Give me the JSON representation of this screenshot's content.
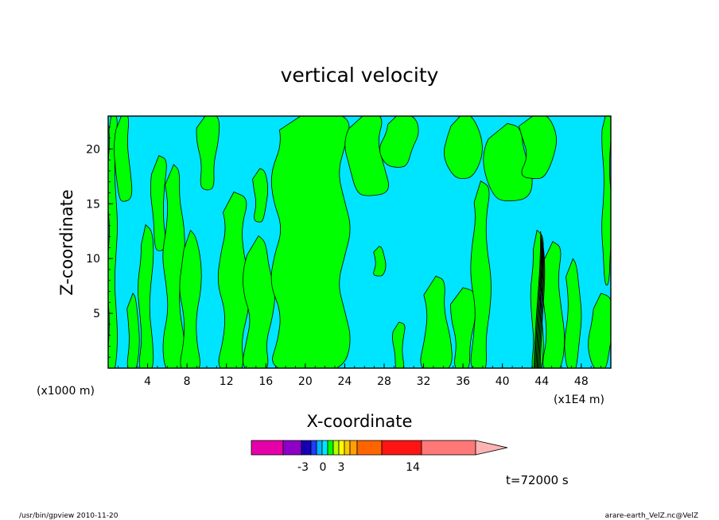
{
  "chart_data": {
    "type": "heatmap",
    "title": "vertical velocity",
    "xlabel": "X-coordinate",
    "ylabel": "Z-coordinate",
    "x_unit_left": "(x1000 m)",
    "x_unit_right": "(x1E4 m)",
    "xlim": [
      0,
      51
    ],
    "ylim": [
      0,
      23
    ],
    "x_ticks": [
      4,
      8,
      12,
      16,
      20,
      24,
      28,
      32,
      36,
      40,
      44,
      48
    ],
    "y_ticks": [
      5,
      10,
      15,
      20
    ],
    "grid": false,
    "colors": {
      "positive": "#00ff00",
      "negative": "#00e5ff",
      "contour": "#000000"
    },
    "green_columns": [
      {
        "x": [
          0.0,
          0.8
        ],
        "y": [
          0.0,
          23.0
        ]
      },
      {
        "x": [
          0.8,
          2.2
        ],
        "y": [
          15.5,
          23.0
        ]
      },
      {
        "x": [
          2.0,
          3.0
        ],
        "y": [
          0.0,
          6.5
        ]
      },
      {
        "x": [
          3.2,
          4.4
        ],
        "y": [
          0.0,
          12.5
        ]
      },
      {
        "x": [
          4.5,
          5.8
        ],
        "y": [
          11.0,
          19.0
        ]
      },
      {
        "x": [
          5.8,
          7.5
        ],
        "y": [
          0.0,
          18.0
        ]
      },
      {
        "x": [
          7.5,
          9.2
        ],
        "y": [
          0.0,
          12.0
        ]
      },
      {
        "x": [
          9.2,
          11.0
        ],
        "y": [
          16.5,
          23.0
        ]
      },
      {
        "x": [
          11.5,
          14.0
        ],
        "y": [
          0.0,
          15.5
        ]
      },
      {
        "x": [
          14.0,
          16.5
        ],
        "y": [
          0.0,
          11.5
        ]
      },
      {
        "x": [
          14.8,
          16.0
        ],
        "y": [
          13.5,
          18.0
        ]
      },
      {
        "x": [
          17.0,
          24.0
        ],
        "y": [
          0.0,
          23.0
        ]
      },
      {
        "x": [
          24.5,
          28.0
        ],
        "y": [
          16.0,
          23.0
        ]
      },
      {
        "x": [
          27.0,
          28.0
        ],
        "y": [
          8.5,
          11.0
        ]
      },
      {
        "x": [
          28.0,
          31.0
        ],
        "y": [
          18.5,
          23.0
        ]
      },
      {
        "x": [
          29.0,
          30.0
        ],
        "y": [
          0.0,
          4.0
        ]
      },
      {
        "x": [
          32.0,
          34.5
        ],
        "y": [
          0.0,
          8.0
        ]
      },
      {
        "x": [
          34.5,
          37.5
        ],
        "y": [
          17.5,
          23.0
        ]
      },
      {
        "x": [
          35.0,
          37.0
        ],
        "y": [
          0.0,
          7.0
        ]
      },
      {
        "x": [
          37.0,
          38.6
        ],
        "y": [
          0.0,
          16.5
        ]
      },
      {
        "x": [
          38.5,
          42.5
        ],
        "y": [
          15.5,
          22.0
        ]
      },
      {
        "x": [
          42.0,
          45.0
        ],
        "y": [
          17.5,
          23.0
        ]
      },
      {
        "x": [
          43.0,
          44.0
        ],
        "y": [
          0.0,
          12.0
        ]
      },
      {
        "x": [
          44.2,
          46.0
        ],
        "y": [
          0.0,
          11.0
        ]
      },
      {
        "x": [
          46.5,
          47.8
        ],
        "y": [
          0.0,
          9.5
        ]
      },
      {
        "x": [
          49.0,
          51.0
        ],
        "y": [
          0.0,
          6.5
        ]
      },
      {
        "x": [
          50.2,
          51.0
        ],
        "y": [
          8.0,
          23.0
        ]
      }
    ],
    "plume": {
      "x_center": 44.0,
      "top": 12.5
    },
    "colorbar": {
      "colors": [
        "#e600aa",
        "#8c00c8",
        "#1400b4",
        "#1e3cff",
        "#00b4ff",
        "#00e5ff",
        "#00ff00",
        "#b4ff00",
        "#ffff00",
        "#ffc800",
        "#ffa000",
        "#ff6400",
        "#ff1414",
        "#ff7878",
        "#ffb4b4"
      ],
      "labels": [
        "-3",
        "0",
        "3",
        "14"
      ]
    },
    "time_label": "t=72000 s"
  },
  "footer": {
    "left": "/usr/bin/gpview   2010-11-20",
    "right": "arare-earth_VelZ.nc@VelZ"
  }
}
